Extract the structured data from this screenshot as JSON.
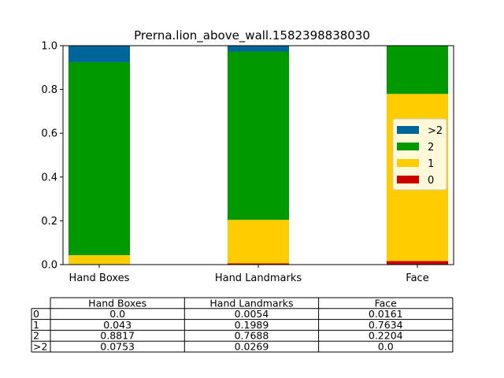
{
  "chart_data": {
    "type": "bar",
    "stacked": true,
    "title": "Prerna.lion_above_wall.1582398838030",
    "categories": [
      "Hand Boxes",
      "Hand Landmarks",
      "Face"
    ],
    "series": [
      {
        "name": "0",
        "color": "#cc0000",
        "values": [
          0.0,
          0.0054,
          0.0161
        ]
      },
      {
        "name": "1",
        "color": "#ffcc00",
        "values": [
          0.043,
          0.1989,
          0.7634
        ]
      },
      {
        "name": "2",
        "color": "#009900",
        "values": [
          0.8817,
          0.7688,
          0.2204
        ]
      },
      {
        "name": ">2",
        "color": "#006699",
        "values": [
          0.0753,
          0.0269,
          0.0
        ]
      }
    ],
    "ylim": [
      0,
      1.0
    ],
    "yticks": [
      "0.0",
      "0.2",
      "0.4",
      "0.6",
      "0.8",
      "1.0"
    ],
    "legend": {
      "position": "right",
      "order": [
        ">2",
        "2",
        "1",
        "0"
      ]
    },
    "table": {
      "columns": [
        "Hand Boxes",
        "Hand Landmarks",
        "Face"
      ],
      "rows": [
        {
          "label": "0",
          "cells": [
            "0.0",
            "0.0054",
            "0.0161"
          ]
        },
        {
          "label": "1",
          "cells": [
            "0.043",
            "0.1989",
            "0.7634"
          ]
        },
        {
          "label": "2",
          "cells": [
            "0.8817",
            "0.7688",
            "0.2204"
          ]
        },
        {
          "label": ">2",
          "cells": [
            "0.0753",
            "0.0269",
            "0.0"
          ]
        }
      ]
    }
  }
}
